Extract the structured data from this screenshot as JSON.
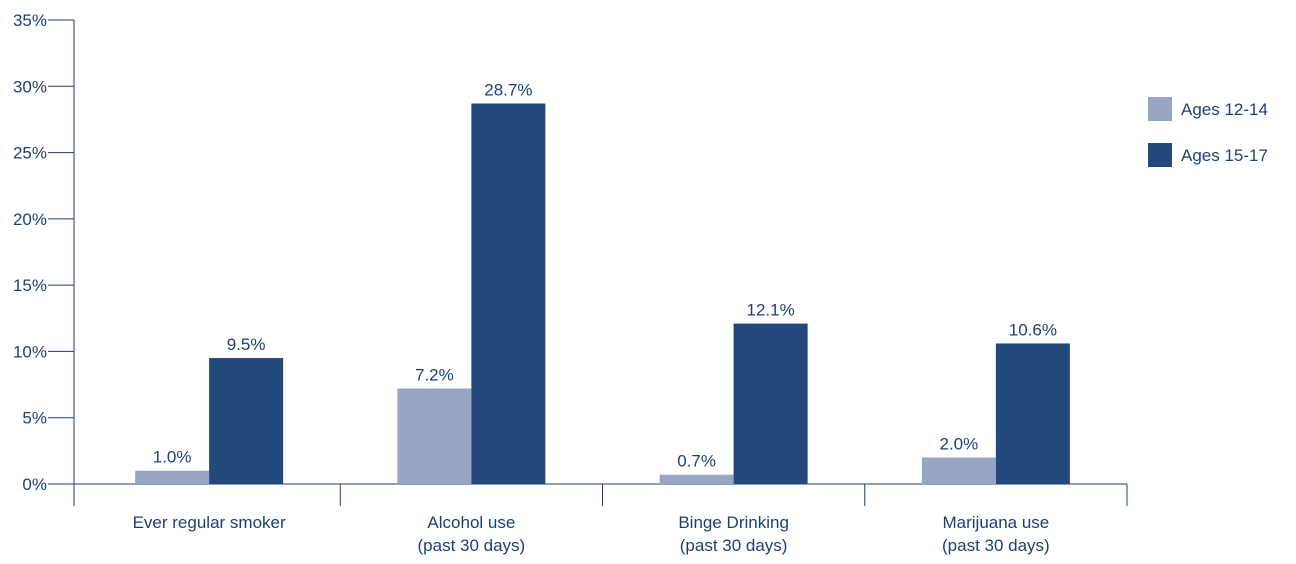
{
  "chart_data": {
    "type": "bar",
    "categories": [
      [
        "Ever regular smoker"
      ],
      [
        "Alcohol use",
        "(past 30 days)"
      ],
      [
        "Binge Drinking",
        "(past 30 days)"
      ],
      [
        "Marijuana use",
        "(past 30 days)"
      ]
    ],
    "series": [
      {
        "name": "Ages 12-14",
        "values": [
          1.0,
          7.2,
          0.7,
          2.0
        ],
        "labels": [
          "1.0%",
          "7.2%",
          "0.7%",
          "2.0%"
        ],
        "color": "#98a6c4"
      },
      {
        "name": "Ages 15-17",
        "values": [
          9.5,
          28.7,
          12.1,
          10.6
        ],
        "labels": [
          "9.5%",
          "28.7%",
          "12.1%",
          "10.6%"
        ],
        "color": "#23487b"
      }
    ],
    "yticks": [
      "0%",
      "5%",
      "10%",
      "15%",
      "20%",
      "25%",
      "30%",
      "35%"
    ],
    "ylim": [
      0,
      35
    ],
    "title": "",
    "xlabel": "",
    "ylabel": "",
    "legend_position": "right",
    "grid": false,
    "axis_color": "#1f3f73"
  }
}
